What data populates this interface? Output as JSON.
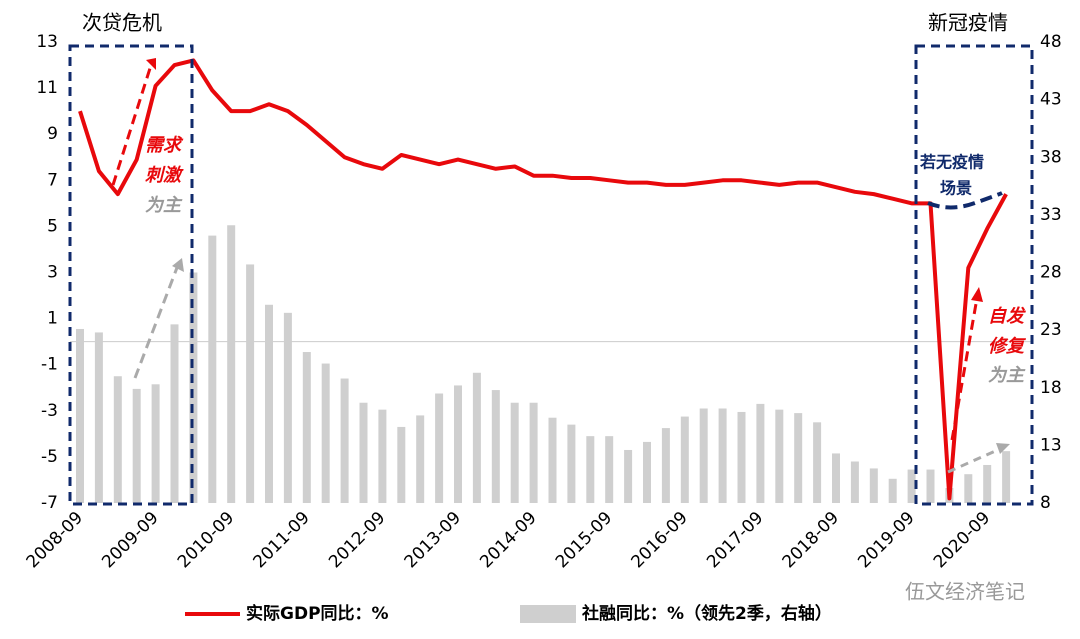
{
  "chart_data": {
    "type": "bar-line",
    "categories": [
      "2008-09",
      null,
      null,
      null,
      "2009-09",
      null,
      null,
      null,
      "2010-09",
      null,
      null,
      null,
      "2011-09",
      null,
      null,
      null,
      "2012-09",
      null,
      null,
      null,
      "2013-09",
      null,
      null,
      null,
      "2014-09",
      null,
      null,
      null,
      "2015-09",
      null,
      null,
      null,
      "2016-09",
      null,
      null,
      null,
      "2017-09",
      null,
      null,
      null,
      "2018-09",
      null,
      null,
      null,
      "2019-09",
      null,
      null,
      null,
      "2020-09",
      null
    ],
    "series": [
      {
        "name": "实际GDP同比：%",
        "type": "line",
        "color": "#e8090c",
        "values": [
          10.0,
          7.4,
          6.4,
          7.9,
          11.1,
          12.0,
          12.2,
          10.9,
          10.0,
          10.0,
          10.3,
          10.0,
          9.4,
          8.7,
          8.0,
          7.7,
          7.5,
          8.1,
          7.9,
          7.7,
          7.9,
          7.7,
          7.5,
          7.6,
          7.2,
          7.2,
          7.1,
          7.1,
          7.0,
          6.9,
          6.9,
          6.8,
          6.8,
          6.9,
          7.0,
          7.0,
          6.9,
          6.8,
          6.9,
          6.9,
          6.7,
          6.5,
          6.4,
          6.2,
          6.0,
          6.0,
          -6.8,
          3.2,
          4.9,
          6.4
        ]
      },
      {
        "name": "社融同比：%（领先2季，右轴）",
        "type": "bar",
        "axis": "y2",
        "color": "#cfcfcf",
        "values": [
          23.1,
          22.8,
          19.0,
          17.9,
          18.3,
          23.5,
          28.0,
          31.2,
          32.1,
          28.7,
          25.2,
          24.5,
          21.1,
          20.1,
          18.8,
          16.7,
          16.1,
          14.6,
          15.6,
          17.5,
          18.2,
          19.3,
          17.8,
          16.7,
          16.7,
          15.4,
          14.8,
          13.8,
          13.8,
          12.6,
          13.3,
          14.5,
          15.5,
          16.2,
          16.2,
          15.9,
          16.6,
          16.1,
          15.8,
          15.0,
          12.3,
          11.6,
          11.0,
          10.1,
          10.9,
          10.9,
          9.3,
          10.5,
          11.3,
          12.5
        ]
      }
    ],
    "ylim": [
      -7,
      13
    ],
    "yticks": [
      -7,
      -5,
      -3,
      -1,
      1,
      3,
      5,
      7,
      9,
      11,
      13
    ],
    "y2lim": [
      8,
      48
    ],
    "y2ticks": [
      8,
      13,
      18,
      23,
      28,
      33,
      38,
      43,
      48
    ],
    "annotations": {
      "crisis": "次贷危机",
      "covid": "新冠疫情",
      "stimulus1": "需求",
      "stimulus2": "刺激",
      "stimulus3": "为主",
      "scenario1": "若无疫情",
      "scenario2": "场景",
      "recover1": "自发",
      "recover2": "修复",
      "recover3": "为主",
      "watermark": "伍文经济笔记"
    }
  }
}
